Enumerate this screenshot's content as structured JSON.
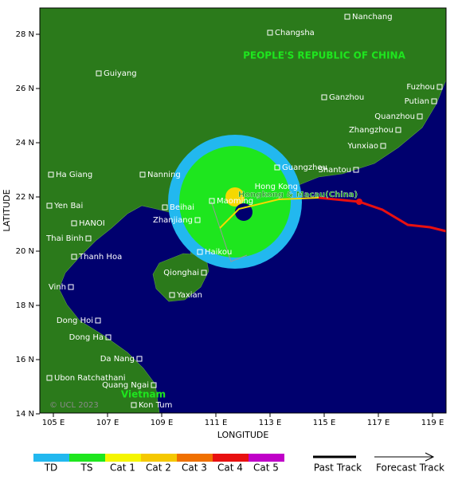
{
  "map": {
    "x_label": "LONGITUDE",
    "y_label": "LATITUDE",
    "x_ticks": [
      "105 E",
      "107 E",
      "109 E",
      "111 E",
      "113 E",
      "115 E",
      "117 E",
      "119 E"
    ],
    "y_ticks": [
      "28 N",
      "26 N",
      "24 N",
      "22 N",
      "20 N",
      "18 N",
      "16 N",
      "14 N"
    ],
    "country_labels": {
      "china": "PEOPLE'S REPUBLIC OF CHINA",
      "vietnam": "Vietnam",
      "hongkong": "Hongkong & Macau(China)"
    },
    "copyright": "© UCL 2023",
    "places": [
      {
        "label": "Nanchang"
      },
      {
        "label": "Changsha"
      },
      {
        "label": "Guiyang"
      },
      {
        "label": "Ganzhou"
      },
      {
        "label": "Fuzhou"
      },
      {
        "label": "Putian"
      },
      {
        "label": "Quanzhou"
      },
      {
        "label": "Zhangzhou"
      },
      {
        "label": "Yunxiao"
      },
      {
        "label": "Guangzhou"
      },
      {
        "label": "Shantou"
      },
      {
        "label": "Nanning"
      },
      {
        "label": "Ha Giang"
      },
      {
        "label": "Yen Bai"
      },
      {
        "label": "HANOI"
      },
      {
        "label": "Thai Binh"
      },
      {
        "label": "Thanh Hoa"
      },
      {
        "label": "Beihai"
      },
      {
        "label": "Maoming"
      },
      {
        "label": "Zhanjiang"
      },
      {
        "label": "Hong Kong"
      },
      {
        "label": "Haikou"
      },
      {
        "label": "Qionghai"
      },
      {
        "label": "Yaxian"
      },
      {
        "label": "Vinh"
      },
      {
        "label": "Dong Hoi"
      },
      {
        "label": "Dong Ha"
      },
      {
        "label": "Da Nang"
      },
      {
        "label": "Ubon Ratchathani"
      },
      {
        "label": "Quang Ngai"
      },
      {
        "label": "Kon Tum"
      }
    ]
  },
  "legend": {
    "categories": [
      "TD",
      "TS",
      "Cat 1",
      "Cat 2",
      "Cat 3",
      "Cat 4",
      "Cat 5"
    ],
    "past_track": "Past Track",
    "forecast_track": "Forecast Track"
  }
}
